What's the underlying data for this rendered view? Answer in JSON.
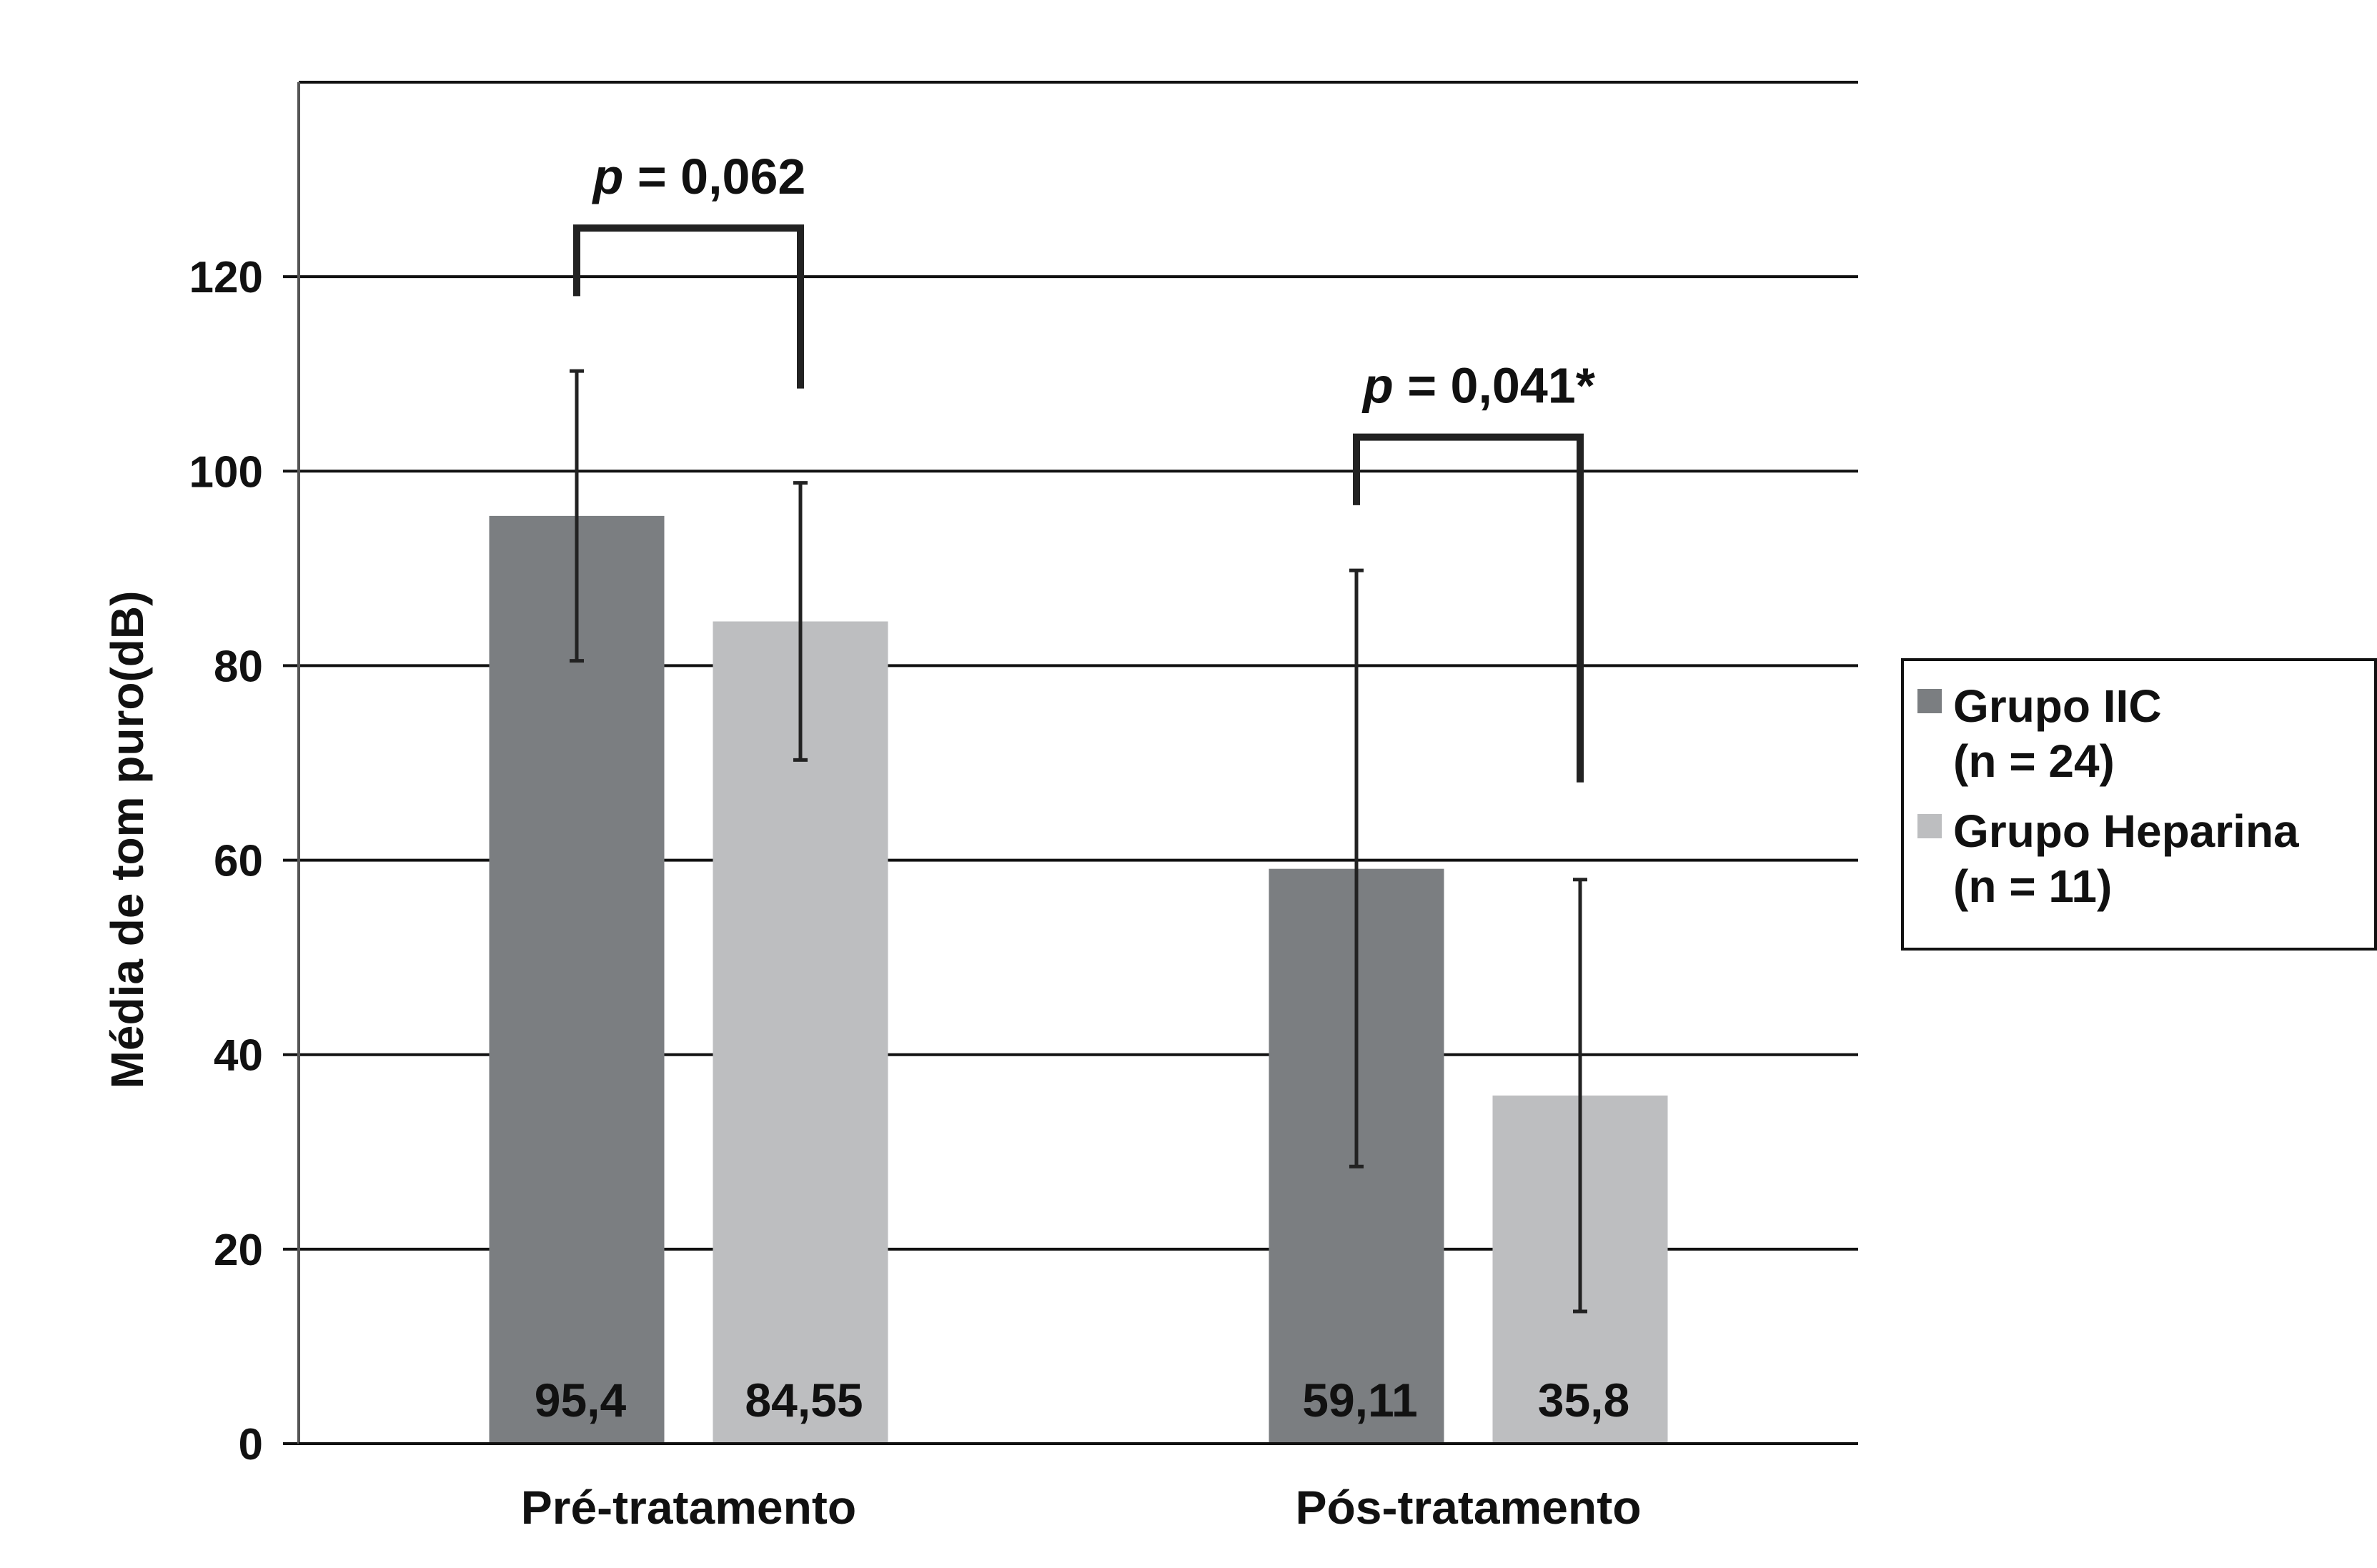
{
  "chart_data": {
    "type": "bar",
    "title": "",
    "xlabel": "",
    "ylabel": "Média de tom puro(dB)",
    "ylim": [
      0,
      140
    ],
    "yticks": [
      0,
      20,
      40,
      60,
      80,
      100,
      120
    ],
    "grid": true,
    "legend_position": "right",
    "categories": [
      "Pré-tratamento",
      "Pós-tratamento"
    ],
    "series": [
      {
        "name": "Grupo IIC",
        "name_line2": "(n = 24)",
        "color": "#7b7e81",
        "values": [
          95.4,
          59.11
        ],
        "value_labels": [
          "95,4",
          "59,11"
        ],
        "error_low": [
          80.5,
          28.5
        ],
        "error_high": [
          110.3,
          89.8
        ]
      },
      {
        "name": "Grupo Heparina",
        "name_line2": "(n = 11)",
        "color": "#bdbec0",
        "values": [
          84.55,
          35.8
        ],
        "value_labels": [
          "84,55",
          "35,8"
        ],
        "error_low": [
          70.3,
          13.6
        ],
        "error_high": [
          98.8,
          58.0
        ]
      }
    ],
    "annotations": [
      {
        "category_index": 0,
        "p_symbol": "p",
        "text": " = 0,062",
        "left_y": 118,
        "right_y": 108.5,
        "top_y": 125
      },
      {
        "category_index": 1,
        "p_symbol": "p",
        "text": " = 0,041*",
        "left_y": 96.5,
        "right_y": 68,
        "top_y": 103.5
      }
    ]
  }
}
